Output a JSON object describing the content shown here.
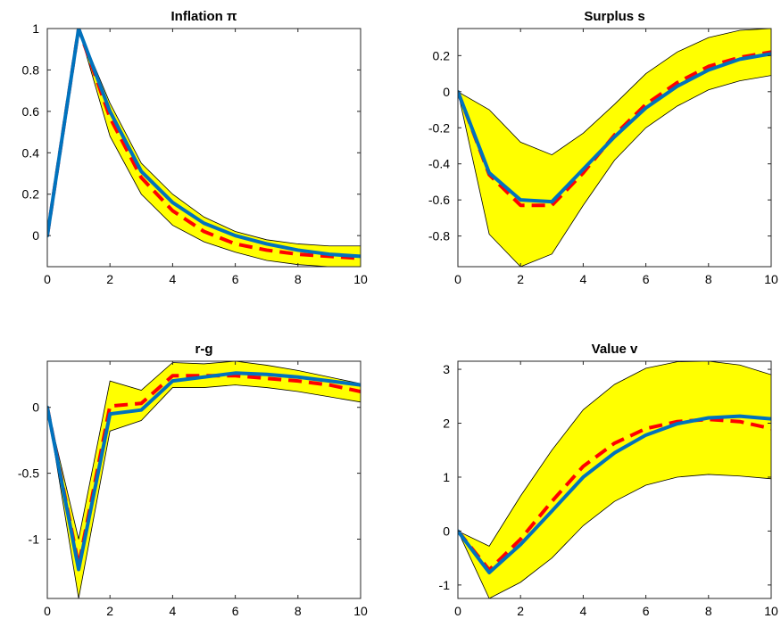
{
  "chart_data": [
    {
      "type": "line",
      "title": "Inflation π",
      "xlabel": "",
      "ylabel": "",
      "xlim": [
        0,
        10
      ],
      "ylim": [
        -0.15,
        1.0
      ],
      "xticks": [
        0,
        2,
        4,
        6,
        8,
        10
      ],
      "yticks": [
        0,
        0.2,
        0.4,
        0.6,
        0.8,
        1
      ],
      "ytick_labels": [
        "0",
        "0.2",
        "0.4",
        "0.6",
        "0.8",
        "1"
      ],
      "x": [
        0,
        1,
        2,
        3,
        4,
        5,
        6,
        7,
        8,
        9,
        10
      ],
      "band": {
        "upper": [
          0,
          1.0,
          0.64,
          0.35,
          0.2,
          0.09,
          0.02,
          -0.02,
          -0.04,
          -0.05,
          -0.05
        ],
        "lower": [
          0,
          1.0,
          0.48,
          0.2,
          0.05,
          -0.03,
          -0.08,
          -0.12,
          -0.14,
          -0.15,
          -0.16
        ],
        "color": "#ffff00"
      },
      "series": [
        {
          "values": [
            0,
            1.0,
            0.57,
            0.28,
            0.12,
            0.02,
            -0.04,
            -0.07,
            -0.09,
            -0.1,
            -0.11
          ],
          "color": "#ff0000",
          "style": "dashed"
        },
        {
          "values": [
            0,
            1.0,
            0.6,
            0.31,
            0.16,
            0.06,
            0.0,
            -0.04,
            -0.07,
            -0.09,
            -0.1
          ],
          "color": "#0072bd",
          "style": "solid"
        }
      ]
    },
    {
      "type": "line",
      "title": "Surplus s",
      "xlabel": "",
      "ylabel": "",
      "xlim": [
        0,
        10
      ],
      "ylim": [
        -0.97,
        0.35
      ],
      "xticks": [
        0,
        2,
        4,
        6,
        8,
        10
      ],
      "yticks": [
        -0.8,
        -0.6,
        -0.4,
        -0.2,
        0,
        0.2
      ],
      "ytick_labels": [
        "-0.8",
        "-0.6",
        "-0.4",
        "-0.2",
        "0",
        "0.2"
      ],
      "x": [
        0,
        1,
        2,
        3,
        4,
        5,
        6,
        7,
        8,
        9,
        10
      ],
      "band": {
        "upper": [
          0,
          -0.1,
          -0.28,
          -0.35,
          -0.23,
          -0.07,
          0.1,
          0.22,
          0.3,
          0.34,
          0.35
        ],
        "lower": [
          0,
          -0.79,
          -0.97,
          -0.9,
          -0.63,
          -0.38,
          -0.2,
          -0.08,
          0.01,
          0.06,
          0.09
        ],
        "color": "#ffff00"
      },
      "series": [
        {
          "values": [
            0,
            -0.46,
            -0.63,
            -0.63,
            -0.45,
            -0.24,
            -0.07,
            0.05,
            0.14,
            0.19,
            0.22
          ],
          "color": "#ff0000",
          "style": "dashed"
        },
        {
          "values": [
            0,
            -0.45,
            -0.6,
            -0.61,
            -0.43,
            -0.25,
            -0.09,
            0.03,
            0.12,
            0.18,
            0.21
          ],
          "color": "#0072bd",
          "style": "solid"
        }
      ]
    },
    {
      "type": "line",
      "title": "r-g",
      "xlabel": "",
      "ylabel": "",
      "xlim": [
        0,
        10
      ],
      "ylim": [
        -1.45,
        0.35
      ],
      "xticks": [
        0,
        2,
        4,
        6,
        8,
        10
      ],
      "yticks": [
        -1,
        -0.5,
        0
      ],
      "ytick_labels": [
        "-1",
        "-0.5",
        "0"
      ],
      "x": [
        0,
        1,
        2,
        3,
        4,
        5,
        6,
        7,
        8,
        9,
        10
      ],
      "band": {
        "upper": [
          0,
          -1.0,
          0.2,
          0.13,
          0.34,
          0.33,
          0.35,
          0.32,
          0.28,
          0.23,
          0.18
        ],
        "lower": [
          0,
          -1.45,
          -0.18,
          -0.1,
          0.15,
          0.15,
          0.17,
          0.15,
          0.12,
          0.08,
          0.04
        ],
        "color": "#ffff00"
      },
      "series": [
        {
          "values": [
            0,
            -1.2,
            0.01,
            0.03,
            0.24,
            0.24,
            0.24,
            0.22,
            0.2,
            0.17,
            0.12
          ],
          "color": "#ff0000",
          "style": "dashed"
        },
        {
          "values": [
            0,
            -1.23,
            -0.05,
            -0.02,
            0.2,
            0.23,
            0.26,
            0.25,
            0.23,
            0.2,
            0.17
          ],
          "color": "#0072bd",
          "style": "solid"
        }
      ]
    },
    {
      "type": "line",
      "title": "Value v",
      "xlabel": "",
      "ylabel": "",
      "xlim": [
        0,
        10
      ],
      "ylim": [
        -1.25,
        3.15
      ],
      "xticks": [
        0,
        2,
        4,
        6,
        8,
        10
      ],
      "yticks": [
        -1,
        0,
        1,
        2,
        3
      ],
      "ytick_labels": [
        "-1",
        "0",
        "1",
        "2",
        "3"
      ],
      "x": [
        0,
        1,
        2,
        3,
        4,
        5,
        6,
        7,
        8,
        9,
        10
      ],
      "band": {
        "upper": [
          0,
          -0.28,
          0.65,
          1.5,
          2.25,
          2.72,
          3.02,
          3.14,
          3.15,
          3.08,
          2.9
        ],
        "lower": [
          0,
          -1.25,
          -0.95,
          -0.5,
          0.1,
          0.55,
          0.85,
          1.0,
          1.05,
          1.02,
          0.97
        ],
        "color": "#ffff00"
      },
      "series": [
        {
          "values": [
            0,
            -0.72,
            -0.15,
            0.55,
            1.2,
            1.63,
            1.9,
            2.03,
            2.07,
            2.03,
            1.9
          ],
          "color": "#ff0000",
          "style": "dashed"
        },
        {
          "values": [
            0,
            -0.77,
            -0.25,
            0.37,
            1.0,
            1.45,
            1.78,
            1.99,
            2.1,
            2.13,
            2.08
          ],
          "color": "#0072bd",
          "style": "solid"
        }
      ]
    }
  ]
}
